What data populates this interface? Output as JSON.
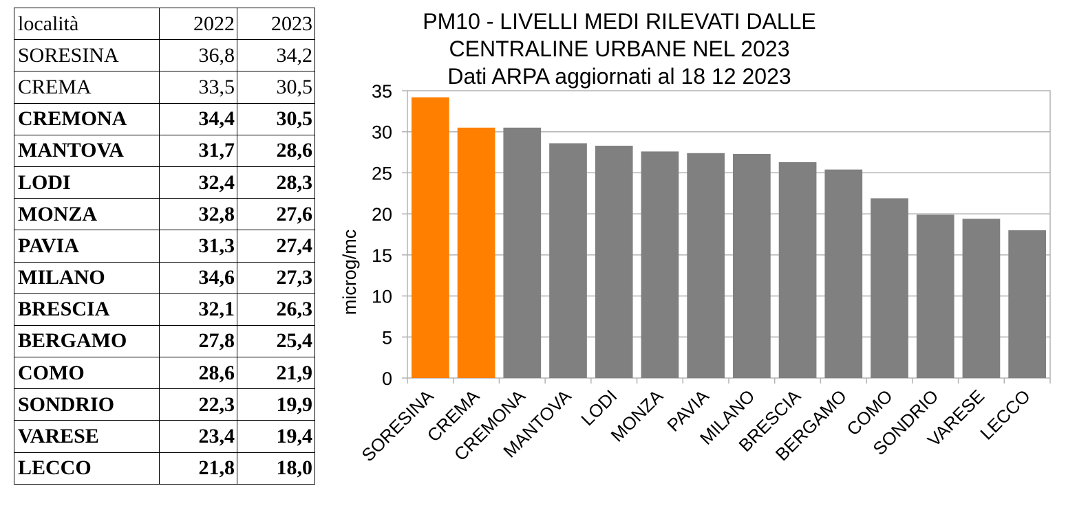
{
  "table": {
    "headers": [
      "località",
      "2022",
      "2023"
    ],
    "rows": [
      {
        "loc": "SORESINA",
        "y2022": "36,8",
        "y2023": "34,2",
        "bold": false
      },
      {
        "loc": "CREMA",
        "y2022": "33,5",
        "y2023": "30,5",
        "bold": false
      },
      {
        "loc": "CREMONA",
        "y2022": "34,4",
        "y2023": "30,5",
        "bold": true
      },
      {
        "loc": "MANTOVA",
        "y2022": "31,7",
        "y2023": "28,6",
        "bold": true
      },
      {
        "loc": "LODI",
        "y2022": "32,4",
        "y2023": "28,3",
        "bold": true
      },
      {
        "loc": "MONZA",
        "y2022": "32,8",
        "y2023": "27,6",
        "bold": true
      },
      {
        "loc": "PAVIA",
        "y2022": "31,3",
        "y2023": "27,4",
        "bold": true
      },
      {
        "loc": "MILANO",
        "y2022": "34,6",
        "y2023": "27,3",
        "bold": true
      },
      {
        "loc": "BRESCIA",
        "y2022": "32,1",
        "y2023": "26,3",
        "bold": true
      },
      {
        "loc": "BERGAMO",
        "y2022": "27,8",
        "y2023": "25,4",
        "bold": true
      },
      {
        "loc": "COMO",
        "y2022": "28,6",
        "y2023": "21,9",
        "bold": true
      },
      {
        "loc": "SONDRIO",
        "y2022": "22,3",
        "y2023": "19,9",
        "bold": true
      },
      {
        "loc": "VARESE",
        "y2022": "23,4",
        "y2023": "19,4",
        "bold": true
      },
      {
        "loc": "LECCO",
        "y2022": "21,8",
        "y2023": "18,0",
        "bold": true
      }
    ]
  },
  "chart_data": {
    "type": "bar",
    "title": [
      "PM10 - LIVELLI MEDI RILEVATI DALLE",
      "CENTRALINE URBANE NEL 2023",
      "Dati ARPA aggiornati al 18 12 2023"
    ],
    "ylabel": "microg/mc",
    "xlabel": "",
    "ylim": [
      0,
      35
    ],
    "yticks": [
      0,
      5,
      10,
      15,
      20,
      25,
      30,
      35
    ],
    "grid": true,
    "categories": [
      "SORESINA",
      "CREMA",
      "CREMONA",
      "MANTOVA",
      "LODI",
      "MONZA",
      "PAVIA",
      "MILANO",
      "BRESCIA",
      "BERGAMO",
      "COMO",
      "SONDRIO",
      "VARESE",
      "LECCO"
    ],
    "values": [
      34.2,
      30.5,
      30.5,
      28.6,
      28.3,
      27.6,
      27.4,
      27.3,
      26.3,
      25.4,
      21.9,
      19.9,
      19.4,
      18.0
    ],
    "bar_colors": [
      "#ff8000",
      "#ff8000",
      "#808080",
      "#808080",
      "#808080",
      "#808080",
      "#808080",
      "#808080",
      "#808080",
      "#808080",
      "#808080",
      "#808080",
      "#808080",
      "#808080"
    ]
  }
}
